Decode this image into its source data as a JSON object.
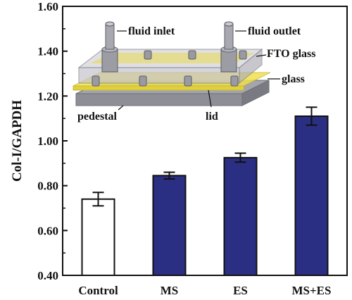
{
  "chart_data": {
    "type": "bar",
    "categories": [
      "Control",
      "MS",
      "ES",
      "MS+ES"
    ],
    "values": [
      0.74,
      0.845,
      0.925,
      1.11
    ],
    "errors": [
      0.03,
      0.015,
      0.02,
      0.04
    ],
    "bar_fill_colors": [
      "#ffffff",
      "#2b2f83",
      "#2b2f83",
      "#2b2f83"
    ],
    "ylabel": "Col-I/GAPDH",
    "ylim": [
      0.4,
      1.6
    ],
    "yticks": [
      0.4,
      0.6,
      0.8,
      1.0,
      1.2,
      1.4,
      1.6
    ],
    "ytick_labels": [
      "0.40",
      "0.60",
      "0.80",
      "1.00",
      "1.20",
      "1.40",
      "1.60"
    ],
    "grid": false,
    "inset": {
      "description_labels": {
        "fluid_inlet": "fluid inlet",
        "fluid_outlet": "fluid outlet",
        "fto_glass": "FTO glass",
        "glass": "glass",
        "pedestal": "pedestal",
        "lid": "lid"
      },
      "colors": {
        "plate_grey": "#b9b9bf",
        "glass_yellow": "#f0e04a",
        "base_dark": "#8e8e96"
      }
    }
  }
}
